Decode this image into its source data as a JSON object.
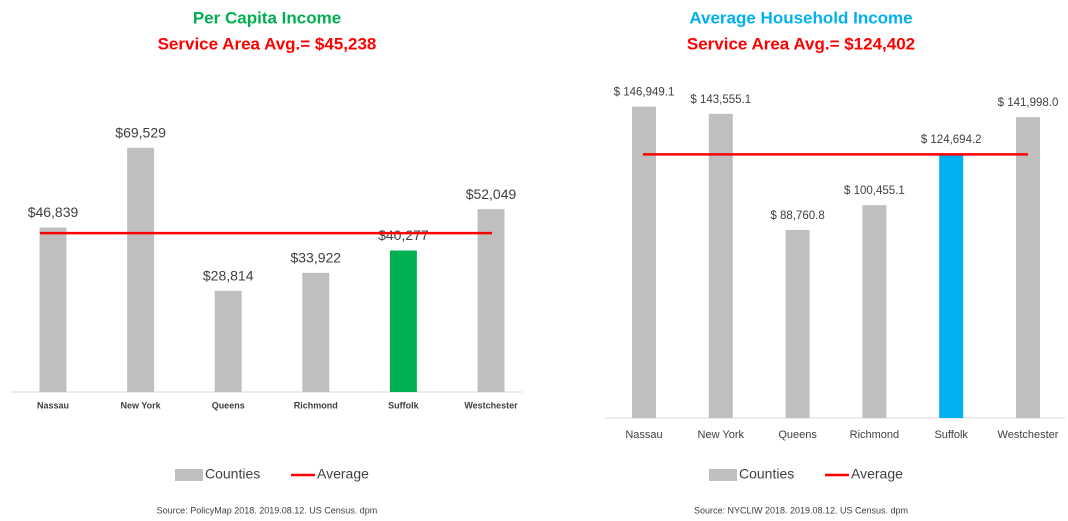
{
  "chart_data": [
    {
      "type": "bar",
      "title": "Per Capita Income",
      "title_color": "#00b050",
      "subtitle": "Service Area Avg.= $45,238",
      "subtitle_color": "#ff0000",
      "categories": [
        "Nassau",
        "New York",
        "Queens",
        "Richmond",
        "Suffolk",
        "Westchester"
      ],
      "values": [
        46839,
        69529,
        28814,
        33922,
        40277,
        52049
      ],
      "value_labels": [
        "$46,839",
        "$69,529",
        "$28,814",
        "$33,922",
        "$40,277",
        "$52,049"
      ],
      "colors": [
        "#bfbfbf",
        "#bfbfbf",
        "#bfbfbf",
        "#bfbfbf",
        "#00b050",
        "#bfbfbf"
      ],
      "average": 45238,
      "average_color": "#ff0000",
      "ylim": [
        0,
        80000
      ],
      "legend": [
        {
          "name": "Counties",
          "color": "#bfbfbf"
        },
        {
          "name": "Average",
          "color": "#ff0000"
        }
      ],
      "source": "Source: PolicyMap 2018. 2019.08.12. US Census. dpm"
    },
    {
      "type": "bar",
      "title": "Average Household Income",
      "title_color": "#00b0f0",
      "subtitle": "Service Area Avg.= $124,402",
      "subtitle_color": "#ff0000",
      "categories": [
        "Nassau",
        "New York",
        "Queens",
        "Richmond",
        "Suffolk",
        "Westchester"
      ],
      "values": [
        146949.1,
        143555.1,
        88760.8,
        100455.1,
        124694.2,
        141998.0
      ],
      "value_labels": [
        "$ 146,949.1",
        "$ 143,555.1",
        "$ 88,760.8",
        "$ 100,455.1",
        "$ 124,694.2",
        "$ 141,998.0"
      ],
      "colors": [
        "#bfbfbf",
        "#bfbfbf",
        "#bfbfbf",
        "#bfbfbf",
        "#00b0f0",
        "#bfbfbf"
      ],
      "average": 124402,
      "average_color": "#ff0000",
      "ylim": [
        0,
        160000
      ],
      "legend": [
        {
          "name": "Counties",
          "color": "#bfbfbf"
        },
        {
          "name": "Average",
          "color": "#ff0000"
        }
      ],
      "source": "Source: NYCLIW 2018. 2019.08.12. US Census. dpm"
    }
  ]
}
